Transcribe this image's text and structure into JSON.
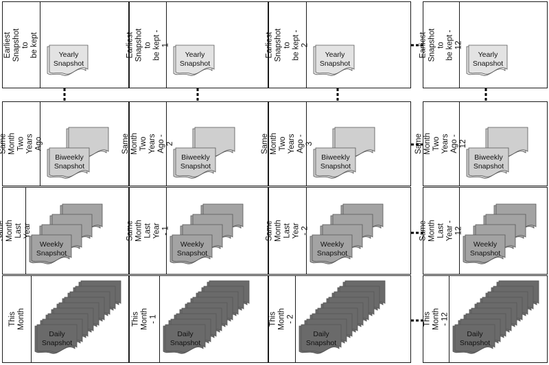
{
  "rows": [
    {
      "kind": "yearly",
      "labels": [
        "Earliest Snapshot to\nbe kept",
        "Earliest Snapshot to\nbe kept - 1",
        "Earliest Snapshot to\nbe kept - 2",
        "Earliest Snapshot to\nbe kept - 12"
      ],
      "snapshot_label": "Yearly\nSnapshot",
      "color": "#e3e3e3",
      "stack": 1
    },
    {
      "kind": "biweekly",
      "labels": [
        "Same Month Two\nYears Ago",
        "Same Month Two\nYears Ago - 2",
        "Same Month Two\nYears Ago - 3",
        "Same Month Two\nYears Ago - 12"
      ],
      "snapshot_label": "Biweekly\nSnapshot",
      "color": "#cfcfcf",
      "stack": 2
    },
    {
      "kind": "weekly",
      "labels": [
        "Same Month Last Year",
        "Same Month Last Year\n- 1",
        "Same Month Last Year\n- 2",
        "Same Month\nLast Year - 12"
      ],
      "snapshot_label": "Weekly\nSnapshot",
      "color": "#a3a3a3",
      "stack": 4
    },
    {
      "kind": "daily",
      "labels": [
        "This Month",
        "This Month - 1",
        "This Month - 2",
        "This Month - 12"
      ],
      "snapshot_label": "Daily\nSnapshot",
      "color": "#6a6a6a",
      "stack": 9
    }
  ],
  "colors": {
    "border": "#1a1a1a",
    "connector": "#000000"
  }
}
